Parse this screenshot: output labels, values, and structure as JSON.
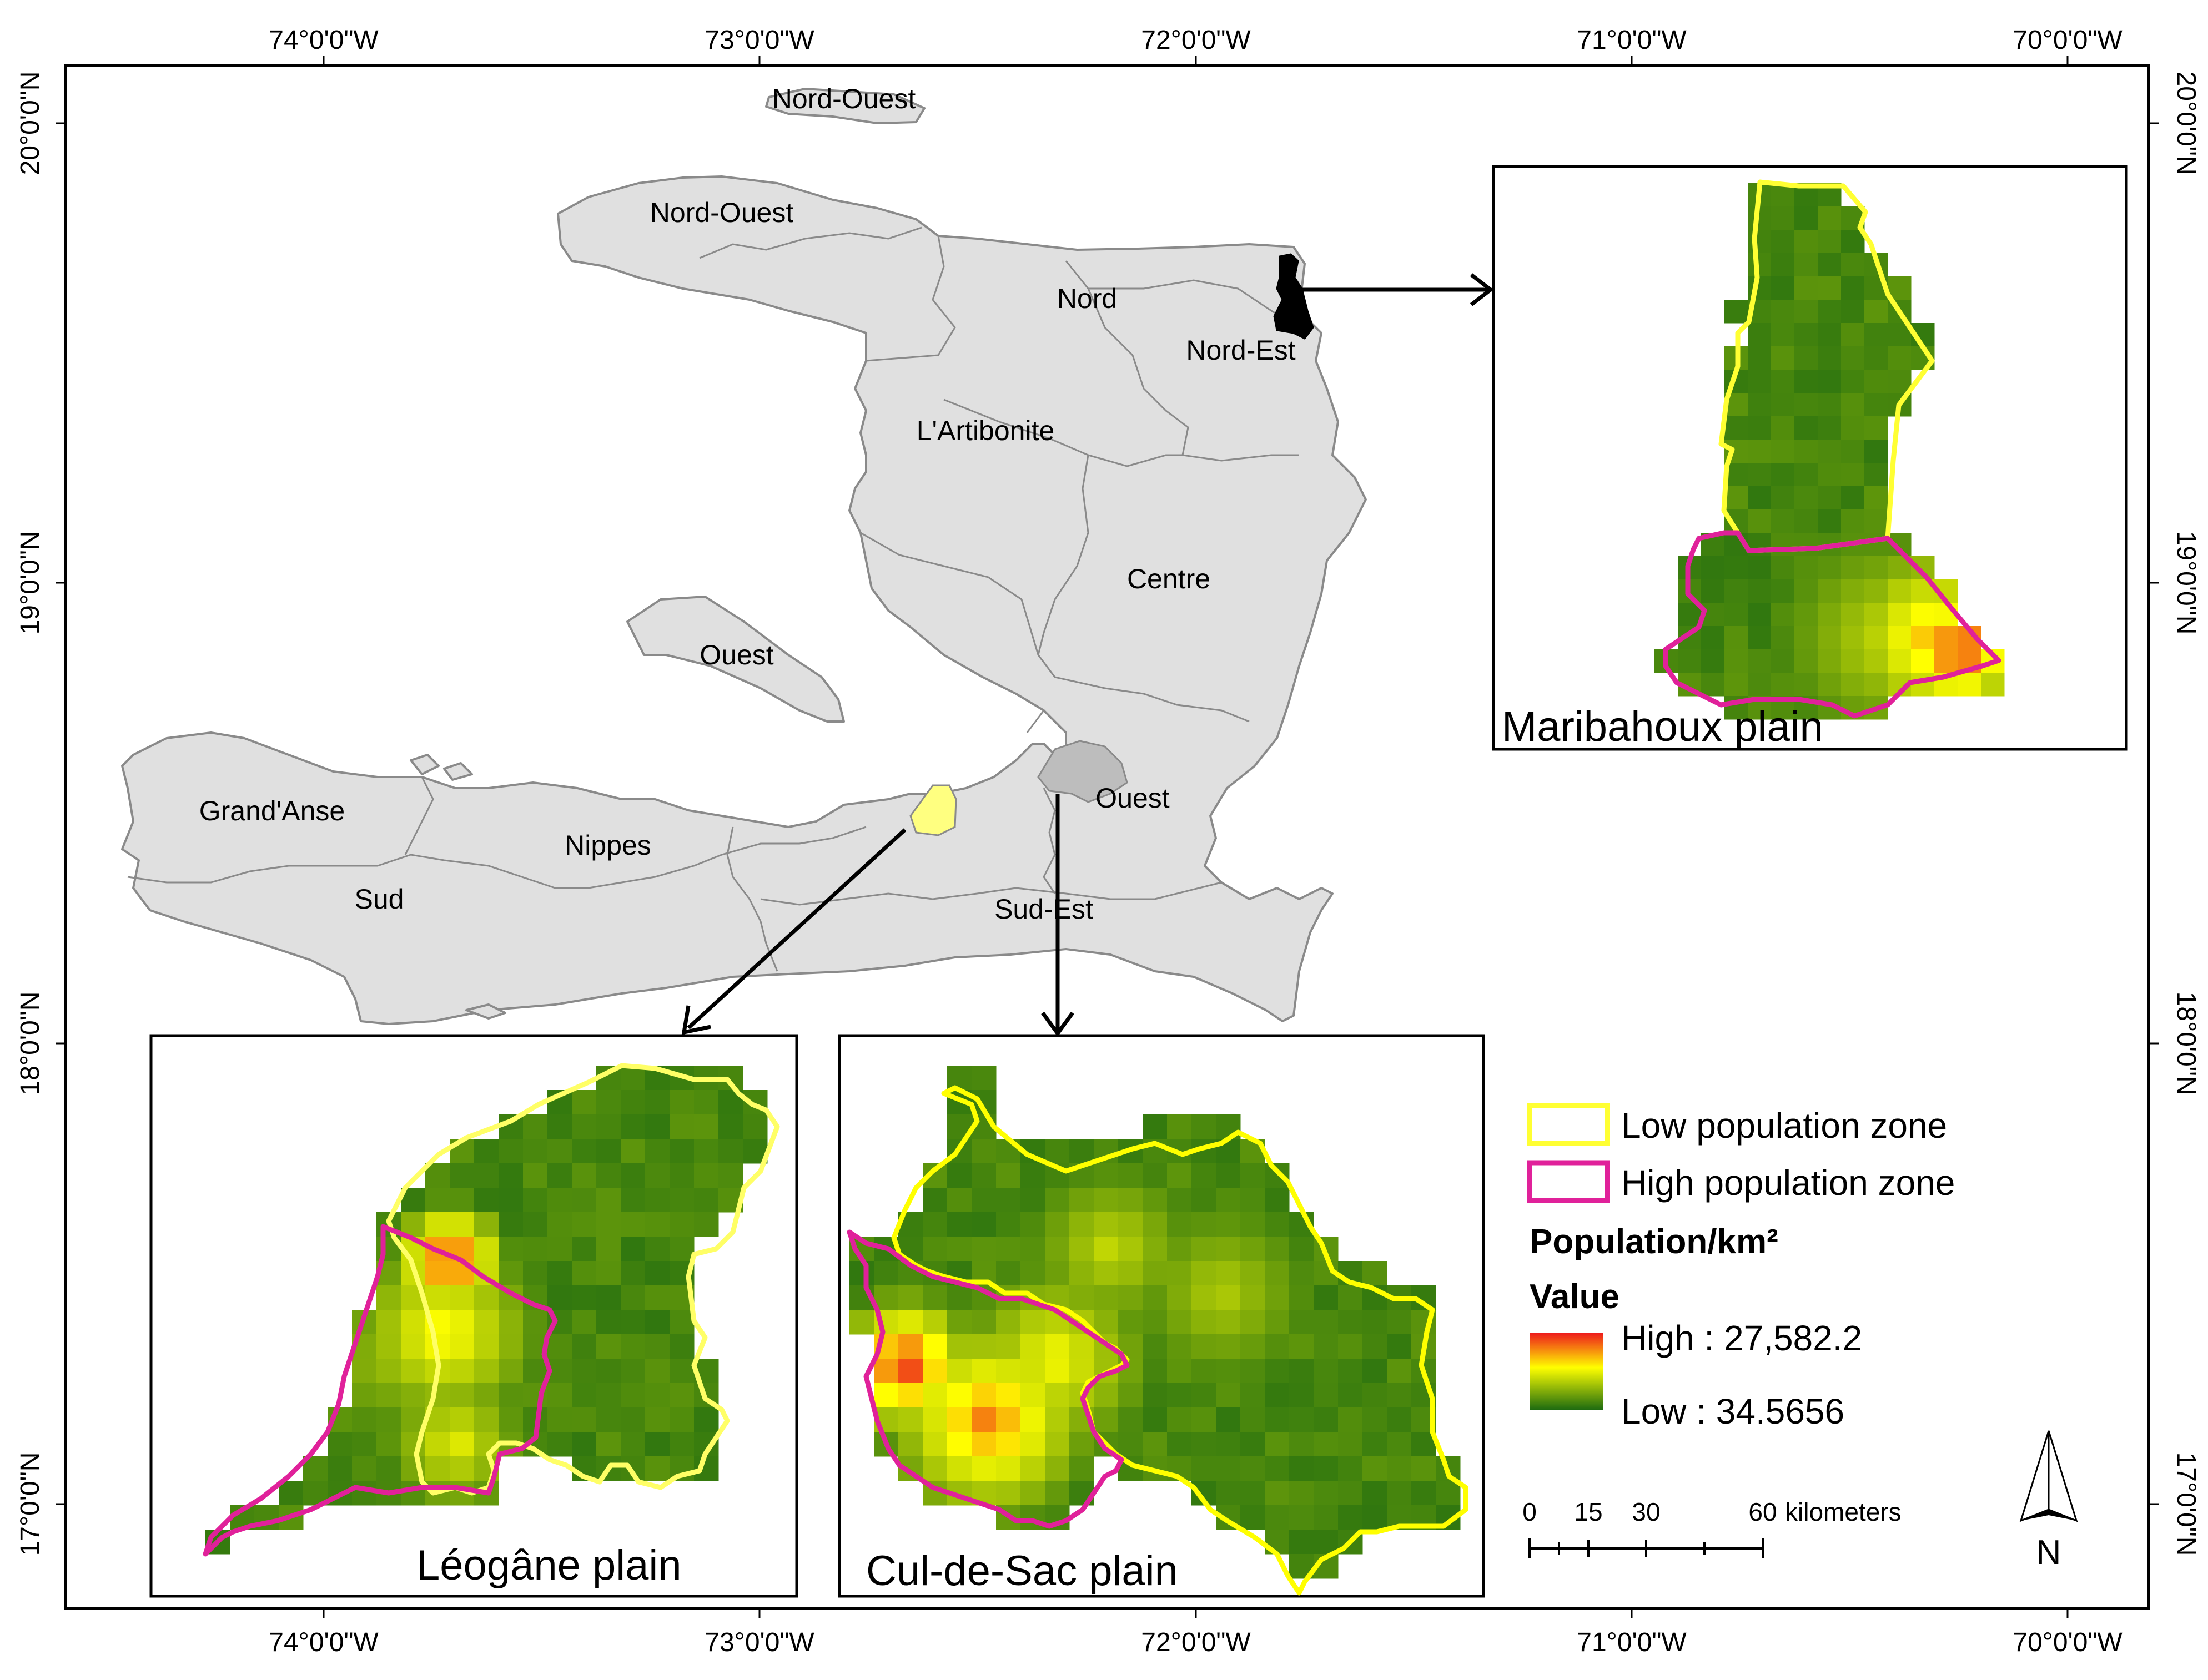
{
  "graticule": {
    "lon_labels": [
      "74°0'0\"W",
      "73°0'0\"W",
      "72°0'0\"W",
      "71°0'0\"W",
      "70°0'0\"W"
    ],
    "lat_labels": [
      "20°0'0\"N",
      "19°0'0\"N",
      "18°0'0\"N",
      "17°0'0\"N"
    ]
  },
  "regions": [
    {
      "id": "nord-ouest-tortuga",
      "label": "Nord-Ouest"
    },
    {
      "id": "nord-ouest",
      "label": "Nord-Ouest"
    },
    {
      "id": "nord",
      "label": "Nord"
    },
    {
      "id": "nord-est",
      "label": "Nord-Est"
    },
    {
      "id": "artibonite",
      "label": "L'Artibonite"
    },
    {
      "id": "centre",
      "label": "Centre"
    },
    {
      "id": "ouest-gonave",
      "label": "Ouest"
    },
    {
      "id": "ouest",
      "label": "Ouest"
    },
    {
      "id": "grand-anse",
      "label": "Grand'Anse"
    },
    {
      "id": "nippes",
      "label": "Nippes"
    },
    {
      "id": "sud",
      "label": "Sud"
    },
    {
      "id": "sud-est",
      "label": "Sud-Est"
    }
  ],
  "insets": {
    "maribahoux": {
      "title": "Maribahoux plain"
    },
    "leogane": {
      "title": "Léogâne plain"
    },
    "culdesac": {
      "title": "Cul-de-Sac  plain"
    }
  },
  "legend": {
    "low_zone": "Low population zone",
    "high_zone": "High population zone",
    "field_title": "Population/km²",
    "value_title": "Value",
    "high_label": "High : 27,582.2",
    "low_label": "Low : 34.5656",
    "low_zone_color": "#ffff33",
    "high_zone_color": "#e0219a"
  },
  "scalebar": {
    "ticks": [
      "0",
      "15",
      "30",
      "60"
    ],
    "unit": "kilometers"
  },
  "north_arrow": {
    "label": "N"
  },
  "colors": {
    "land": "#e0e0e0",
    "border": "#8a8a8a",
    "gradient_high": "#ee1c1c",
    "gradient_mid": "#ffff00",
    "gradient_low": "#1e6b10",
    "maribahoux_marker": "#000000",
    "leogane_marker": "#ffff80",
    "culdesac_marker": "#bdbdbd"
  }
}
